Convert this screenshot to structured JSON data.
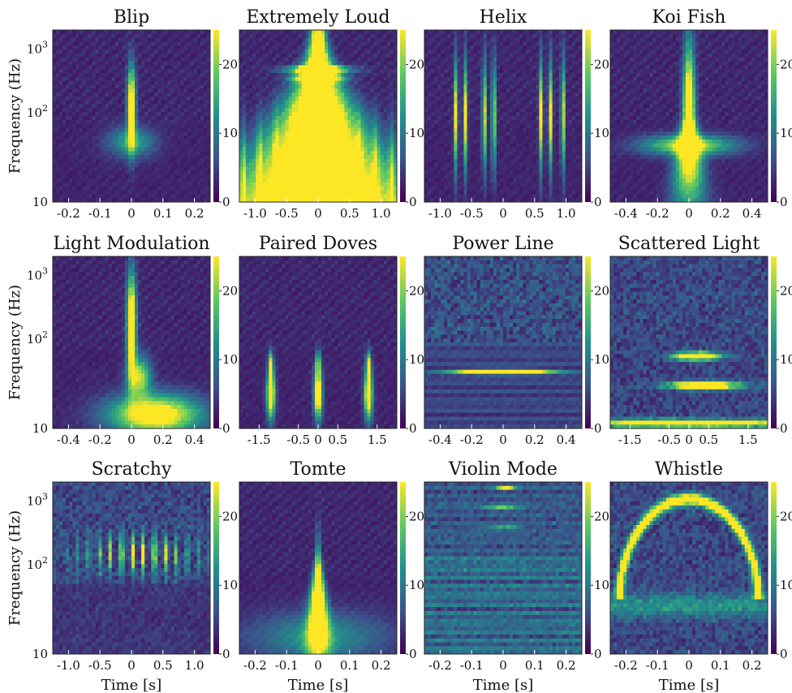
{
  "chart_data": {
    "type": "heatmap",
    "layout": {
      "rows": 3,
      "cols": 4
    },
    "xlabel": "Time [s]",
    "ylabel": "Frequency (Hz)",
    "colormap": "viridis",
    "colorbar": {
      "ticks": [
        "0",
        "10",
        "20"
      ],
      "range": [
        0,
        25
      ]
    },
    "y_ticks": [
      "10",
      "10^2",
      "10^3"
    ],
    "panels": [
      {
        "title": "Blip",
        "xticks": [
          "-0.2",
          "-0.1",
          "0",
          "0.1",
          "0.2"
        ],
        "xlim": [
          -0.25,
          0.25
        ],
        "pattern": "blip"
      },
      {
        "title": "Extremely Loud",
        "xticks": [
          "-1.0",
          "-0.5",
          "0",
          "0.5",
          "1.0"
        ],
        "xlim": [
          -1.25,
          1.25
        ],
        "pattern": "loud"
      },
      {
        "title": "Helix",
        "xticks": [
          "-1.0",
          "-0.5",
          "0",
          "0.5",
          "1.0"
        ],
        "xlim": [
          -1.25,
          1.25
        ],
        "pattern": "helix"
      },
      {
        "title": "Koi Fish",
        "xticks": [
          "-0.4",
          "-0.2",
          "0",
          "0.2",
          "0.4"
        ],
        "xlim": [
          -0.5,
          0.5
        ],
        "pattern": "koi"
      },
      {
        "title": "Light Modulation",
        "xticks": [
          "-0.4",
          "-0.2",
          "0",
          "0.2",
          "0.4"
        ],
        "xlim": [
          -0.5,
          0.5
        ],
        "pattern": "lightmod"
      },
      {
        "title": "Paired Doves",
        "xticks": [
          "-1.5",
          "-0.5",
          "0",
          "0.5",
          "1.5"
        ],
        "xlim": [
          -2.0,
          2.0
        ],
        "pattern": "doves"
      },
      {
        "title": "Power Line",
        "xticks": [
          "-0.4",
          "-0.2",
          "0",
          "0.2",
          "0.4"
        ],
        "xlim": [
          -0.5,
          0.5
        ],
        "pattern": "powerline"
      },
      {
        "title": "Scattered Light",
        "xticks": [
          "-1.5",
          "-0.5",
          "0",
          "0.5",
          "1.5"
        ],
        "xlim": [
          -2.0,
          2.0
        ],
        "pattern": "scattered"
      },
      {
        "title": "Scratchy",
        "xticks": [
          "-1.0",
          "-0.5",
          "0",
          "0.5",
          "1.0"
        ],
        "xlim": [
          -1.25,
          1.25
        ],
        "pattern": "scratchy"
      },
      {
        "title": "Tomte",
        "xticks": [
          "-0.2",
          "-0.1",
          "0",
          "0.1",
          "0.2"
        ],
        "xlim": [
          -0.25,
          0.25
        ],
        "pattern": "tomte"
      },
      {
        "title": "Violin Mode",
        "xticks": [
          "-0.2",
          "-0.1",
          "0",
          "0.1",
          "0.2"
        ],
        "xlim": [
          -0.25,
          0.25
        ],
        "pattern": "violin"
      },
      {
        "title": "Whistle",
        "xticks": [
          "-0.2",
          "-0.1",
          "0",
          "0.1",
          "0.2"
        ],
        "xlim": [
          -0.25,
          0.25
        ],
        "pattern": "whistle"
      }
    ]
  }
}
